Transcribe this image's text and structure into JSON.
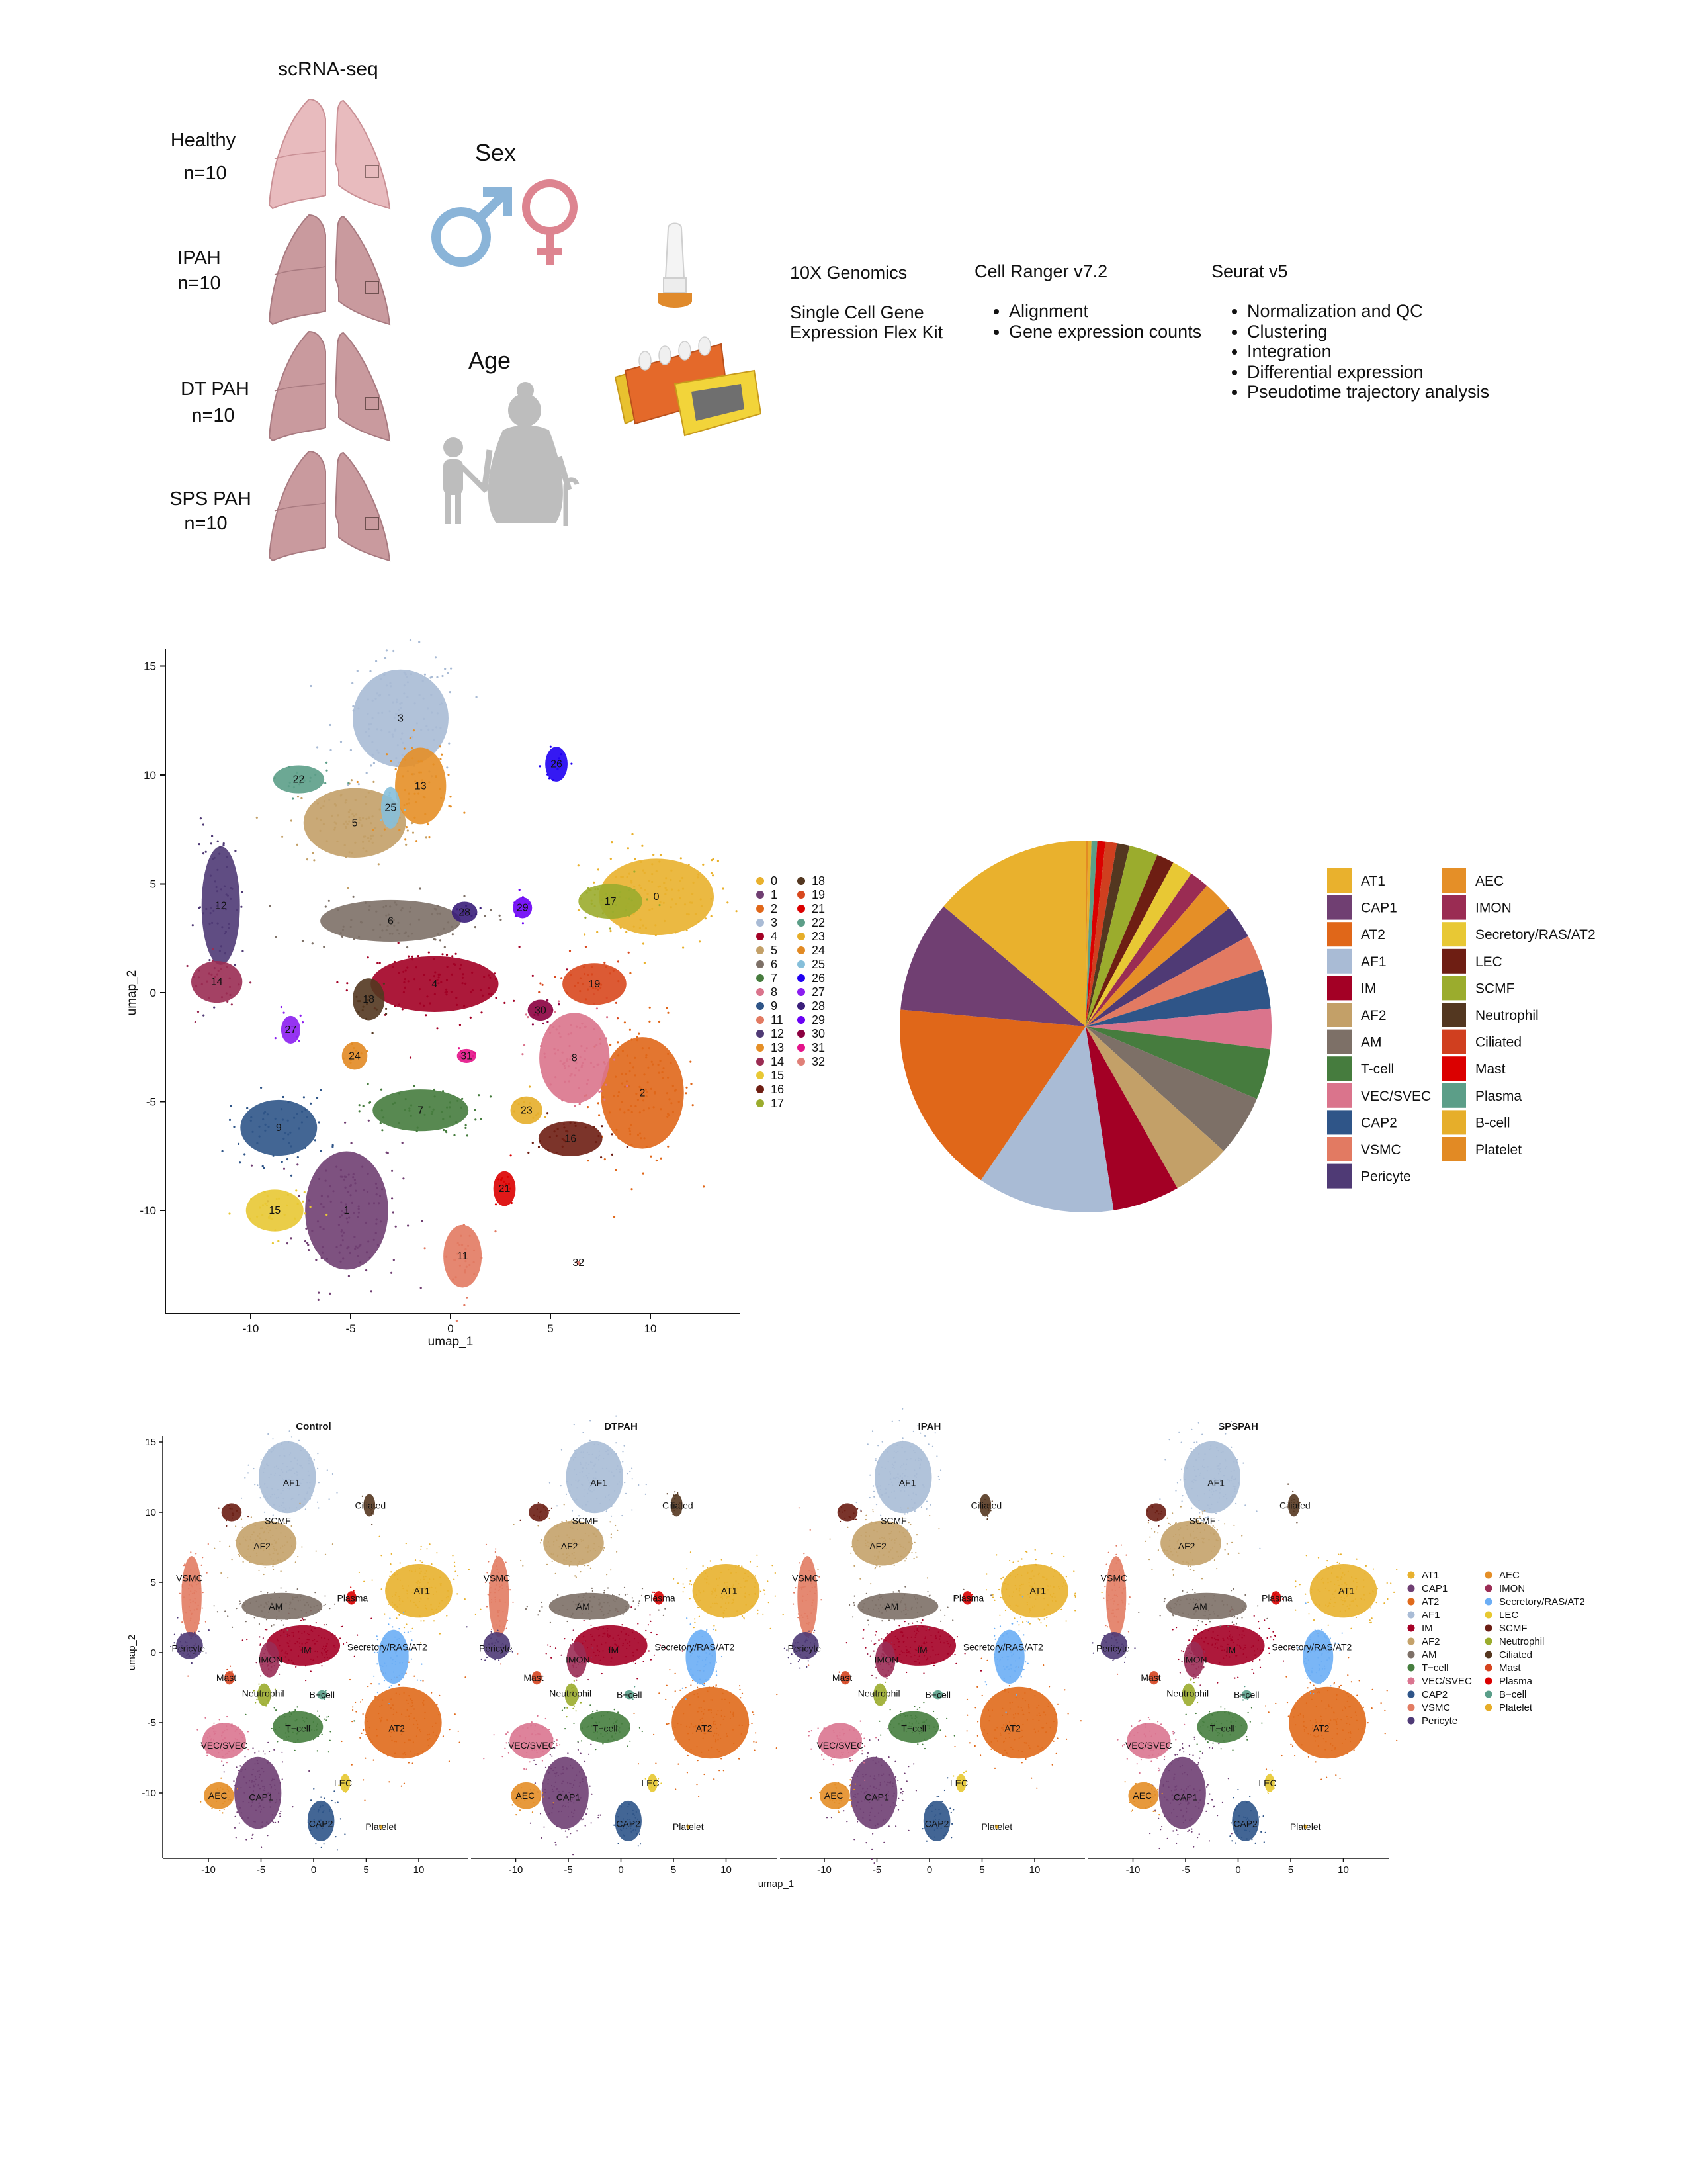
{
  "header": {
    "assay": "scRNA-seq"
  },
  "cohorts": [
    {
      "name": "Healthy",
      "n": "n=10"
    },
    {
      "name": "IPAH",
      "n": "n=10"
    },
    {
      "name": "DT PAH",
      "n": "n=10"
    },
    {
      "name": "SPS PAH",
      "n": "n=10"
    }
  ],
  "covariates": {
    "sex": "Sex",
    "age": "Age"
  },
  "colors": {
    "lung_healthy": "#E8BBBE",
    "lung_disease": "#C99A9E",
    "male": "#8AB4D8",
    "female": "#DD8490",
    "figure": "#BDBDBD"
  },
  "pipeline": {
    "platform": {
      "title": "10X Genomics",
      "lines": [
        "Single Cell Gene",
        "Expression Flex Kit"
      ]
    },
    "cellranger": {
      "title": "Cell Ranger v7.2",
      "bullets": [
        "Alignment",
        "Gene expression counts"
      ]
    },
    "seurat": {
      "title": "Seurat v5",
      "bullets": [
        "Normalization and QC",
        "Clustering",
        "Integration",
        "Differential expression",
        "Pseudotime trajectory analysis"
      ]
    }
  },
  "chart_data": [
    {
      "type": "scatter",
      "title": "",
      "xlabel": "umap_1",
      "ylabel": "umap_2",
      "xlim": [
        -14.3,
        14.5
      ],
      "ylim": [
        -14.7,
        15.8
      ],
      "xticks": [
        "-10",
        "-5",
        "0",
        "5",
        "10"
      ],
      "xtick_values": [
        -10,
        -5,
        0,
        5,
        10
      ],
      "yticks": [
        "-10",
        "-5",
        "0",
        "5",
        "10",
        "15"
      ],
      "ytick_values": [
        -10,
        -5,
        0,
        5,
        10,
        15
      ],
      "legend_position": "right",
      "clusters": [
        {
          "id": "0",
          "color": "#E9B12D",
          "center": [
            10.3,
            4.4
          ],
          "spread": [
            1.8,
            1.1
          ]
        },
        {
          "id": "1",
          "color": "#703F72",
          "center": [
            -5.2,
            -10.0
          ],
          "spread": [
            1.3,
            1.7
          ]
        },
        {
          "id": "2",
          "color": "#E06719",
          "center": [
            9.6,
            -4.6
          ],
          "spread": [
            1.3,
            1.6
          ]
        },
        {
          "id": "3",
          "color": "#A9BBD5",
          "center": [
            -2.5,
            12.6
          ],
          "spread": [
            1.5,
            1.4
          ]
        },
        {
          "id": "4",
          "color": "#A30025",
          "center": [
            -0.8,
            0.4
          ],
          "spread": [
            2.0,
            0.8
          ]
        },
        {
          "id": "5",
          "color": "#C3A068",
          "center": [
            -4.8,
            7.8
          ],
          "spread": [
            1.6,
            1.0
          ]
        },
        {
          "id": "6",
          "color": "#7D7067",
          "center": [
            -3.0,
            3.3
          ],
          "spread": [
            2.2,
            0.6
          ]
        },
        {
          "id": "7",
          "color": "#467C3E",
          "center": [
            -1.5,
            -5.4
          ],
          "spread": [
            1.5,
            0.6
          ]
        },
        {
          "id": "8",
          "color": "#DA748C",
          "center": [
            6.2,
            -3.0
          ],
          "spread": [
            1.1,
            1.3
          ]
        },
        {
          "id": "9",
          "color": "#2F5588",
          "center": [
            -8.6,
            -6.2
          ],
          "spread": [
            1.2,
            0.8
          ]
        },
        {
          "id": "11",
          "color": "#E27A62",
          "center": [
            0.6,
            -12.1
          ],
          "spread": [
            0.6,
            0.9
          ]
        },
        {
          "id": "12",
          "color": "#4F3A75",
          "center": [
            -11.5,
            4.0
          ],
          "spread": [
            0.6,
            1.7
          ]
        },
        {
          "id": "13",
          "color": "#E58F27",
          "center": [
            -1.5,
            9.5
          ],
          "spread": [
            0.8,
            1.1
          ]
        },
        {
          "id": "14",
          "color": "#9A2C53",
          "center": [
            -11.7,
            0.5
          ],
          "spread": [
            0.8,
            0.6
          ]
        },
        {
          "id": "15",
          "color": "#E8C834",
          "center": [
            -8.8,
            -10.0
          ],
          "spread": [
            0.9,
            0.6
          ]
        },
        {
          "id": "16",
          "color": "#6E1E13",
          "center": [
            6.0,
            -6.7
          ],
          "spread": [
            1.0,
            0.5
          ]
        },
        {
          "id": "17",
          "color": "#9BAC2D",
          "center": [
            8.0,
            4.2
          ],
          "spread": [
            1.0,
            0.5
          ]
        },
        {
          "id": "18",
          "color": "#533720",
          "center": [
            -4.1,
            -0.3
          ],
          "spread": [
            0.5,
            0.6
          ]
        },
        {
          "id": "19",
          "color": "#D8481E",
          "center": [
            7.2,
            0.4
          ],
          "spread": [
            1.0,
            0.6
          ]
        },
        {
          "id": "21",
          "color": "#DB0000",
          "center": [
            2.7,
            -9.0
          ],
          "spread": [
            0.35,
            0.5
          ]
        },
        {
          "id": "22",
          "color": "#5C9E88",
          "center": [
            -7.6,
            9.8
          ],
          "spread": [
            0.8,
            0.4
          ]
        },
        {
          "id": "23",
          "color": "#E6AE2A",
          "center": [
            3.8,
            -5.4
          ],
          "spread": [
            0.5,
            0.4
          ]
        },
        {
          "id": "24",
          "color": "#E28A24",
          "center": [
            -4.8,
            -2.9
          ],
          "spread": [
            0.4,
            0.4
          ]
        },
        {
          "id": "25",
          "color": "#86BFDA",
          "center": [
            -3.0,
            8.5
          ],
          "spread": [
            0.3,
            0.6
          ]
        },
        {
          "id": "26",
          "color": "#1F00F2",
          "center": [
            5.3,
            10.5
          ],
          "spread": [
            0.35,
            0.5
          ]
        },
        {
          "id": "27",
          "color": "#8B1EF0",
          "center": [
            -8.0,
            -1.7
          ],
          "spread": [
            0.3,
            0.4
          ]
        },
        {
          "id": "28",
          "color": "#3A1E7A",
          "center": [
            0.7,
            3.7
          ],
          "spread": [
            0.4,
            0.3
          ]
        },
        {
          "id": "29",
          "color": "#6A00F5",
          "center": [
            3.6,
            3.9
          ],
          "spread": [
            0.3,
            0.3
          ]
        },
        {
          "id": "30",
          "color": "#8C0040",
          "center": [
            4.5,
            -0.8
          ],
          "spread": [
            0.4,
            0.3
          ]
        },
        {
          "id": "31",
          "color": "#E4138A",
          "center": [
            0.8,
            -2.9
          ],
          "spread": [
            0.3,
            0.2
          ]
        },
        {
          "id": "32",
          "color": "#E08078",
          "center": [
            6.4,
            -12.4
          ],
          "spread": [
            0.05,
            0.05
          ]
        }
      ]
    },
    {
      "type": "pie",
      "title": "",
      "legend_position": "right",
      "unit": "percent of cells (estimated)",
      "slices": [
        {
          "name": "AT1",
          "value": 13.8,
          "color": "#E9B12D"
        },
        {
          "name": "CAP1",
          "value": 9.7,
          "color": "#703F72"
        },
        {
          "name": "AT2",
          "value": 16.9,
          "color": "#E06719"
        },
        {
          "name": "AF1",
          "value": 11.9,
          "color": "#A9BBD5"
        },
        {
          "name": "IM",
          "value": 5.8,
          "color": "#A30025"
        },
        {
          "name": "AF2",
          "value": 5.1,
          "color": "#C3A068"
        },
        {
          "name": "AM",
          "value": 5.3,
          "color": "#7D7067"
        },
        {
          "name": "T-cell",
          "value": 4.4,
          "color": "#467C3E"
        },
        {
          "name": "VEC/SVEC",
          "value": 3.5,
          "color": "#DA748C"
        },
        {
          "name": "CAP2",
          "value": 3.4,
          "color": "#2F5588"
        },
        {
          "name": "VSMC",
          "value": 3.1,
          "color": "#E27A62"
        },
        {
          "name": "Pericyte",
          "value": 2.9,
          "color": "#4F3A75"
        },
        {
          "name": "AEC",
          "value": 2.7,
          "color": "#E58F27"
        },
        {
          "name": "IMON",
          "value": 1.7,
          "color": "#9A2C53"
        },
        {
          "name": "Secretory/RAS/AT2",
          "value": 1.8,
          "color": "#E8C834"
        },
        {
          "name": "LEC",
          "value": 1.5,
          "color": "#6E1E13"
        },
        {
          "name": "SCMF",
          "value": 2.5,
          "color": "#9BAC2D"
        },
        {
          "name": "Neutrophil",
          "value": 1.1,
          "color": "#533720"
        },
        {
          "name": "Ciliated",
          "value": 1.0,
          "color": "#D03F1F"
        },
        {
          "name": "Mast",
          "value": 0.7,
          "color": "#DB0000"
        },
        {
          "name": "Plasma",
          "value": 0.5,
          "color": "#5C9E88"
        },
        {
          "name": "B-cell",
          "value": 0.3,
          "color": "#E6AE2A"
        },
        {
          "name": "Platelet",
          "value": 0.2,
          "color": "#E28A24"
        }
      ]
    },
    {
      "type": "scatter",
      "panels": [
        "Control",
        "DTPAH",
        "IPAH",
        "SPSPAH"
      ],
      "xlabel": "umap_1",
      "ylabel": "umap_2",
      "xlim": [
        -14.5,
        14.5
      ],
      "ylim": [
        -14.7,
        15.8
      ],
      "xticks": [
        "-10",
        "-5",
        "0",
        "5",
        "10"
      ],
      "xtick_values": [
        -10,
        -5,
        0,
        5,
        10
      ],
      "yticks": [
        "-10",
        "-5",
        "0",
        "5",
        "10",
        "15"
      ],
      "ytick_values": [
        -10,
        -5,
        0,
        5,
        10,
        15
      ],
      "legend_position": "right",
      "celltypes": [
        {
          "name": "AT1",
          "color": "#E8B12E",
          "center": [
            10.0,
            4.4
          ],
          "spread": [
            2.0,
            1.2
          ],
          "label_at": [
            10.3,
            4.4
          ]
        },
        {
          "name": "CAP1",
          "color": "#6F3F73",
          "center": [
            -5.3,
            -10.0
          ],
          "spread": [
            1.4,
            1.6
          ],
          "label_at": [
            -5.0,
            -10.3
          ]
        },
        {
          "name": "AT2",
          "color": "#E06A1B",
          "center": [
            8.5,
            -5.0
          ],
          "spread": [
            2.3,
            1.6
          ],
          "label_at": [
            7.9,
            -5.4
          ]
        },
        {
          "name": "AF1",
          "color": "#A9BCD6",
          "center": [
            -2.5,
            12.5
          ],
          "spread": [
            1.7,
            1.6
          ],
          "label_at": [
            -2.1,
            12.1
          ]
        },
        {
          "name": "IM",
          "color": "#A50026",
          "center": [
            -1.0,
            0.5
          ],
          "spread": [
            2.2,
            0.9
          ],
          "label_at": [
            -0.7,
            0.2
          ]
        },
        {
          "name": "AF2",
          "color": "#C4A26A",
          "center": [
            -4.5,
            7.8
          ],
          "spread": [
            1.8,
            1.0
          ],
          "label_at": [
            -4.9,
            7.6
          ]
        },
        {
          "name": "AM",
          "color": "#7D7067",
          "center": [
            -3.0,
            3.3
          ],
          "spread": [
            2.4,
            0.6
          ],
          "label_at": [
            -3.6,
            3.3
          ]
        },
        {
          "name": "T−cell",
          "color": "#467E3F",
          "center": [
            -1.5,
            -5.3
          ],
          "spread": [
            1.5,
            0.7
          ],
          "label_at": [
            -1.5,
            -5.4
          ]
        },
        {
          "name": "VEC/SVEC",
          "color": "#DA7590",
          "center": [
            -8.5,
            -6.3
          ],
          "spread": [
            1.3,
            0.8
          ],
          "label_at": [
            -8.5,
            -6.6
          ]
        },
        {
          "name": "CAP2",
          "color": "#2F5589",
          "center": [
            0.7,
            -12.0
          ],
          "spread": [
            0.8,
            0.9
          ],
          "label_at": [
            0.7,
            -12.2
          ]
        },
        {
          "name": "VSMC",
          "color": "#E27C63",
          "center": [
            -11.6,
            4.0
          ],
          "spread": [
            0.6,
            1.8
          ],
          "label_at": [
            -11.8,
            5.3
          ]
        },
        {
          "name": "Pericyte",
          "color": "#4E3A76",
          "center": [
            -11.8,
            0.5
          ],
          "spread": [
            0.8,
            0.6
          ],
          "label_at": [
            -11.9,
            0.3
          ]
        },
        {
          "name": "AEC",
          "color": "#E48E27",
          "center": [
            -9.0,
            -10.2
          ],
          "spread": [
            0.9,
            0.6
          ],
          "label_at": [
            -9.1,
            -10.2
          ]
        },
        {
          "name": "IMON",
          "color": "#9A2C55",
          "center": [
            -4.2,
            -0.5
          ],
          "spread": [
            0.6,
            0.8
          ],
          "label_at": [
            -4.1,
            -0.5
          ]
        },
        {
          "name": "Secretory/RAS/AT2",
          "color": "#6CAEF5",
          "center": [
            7.6,
            -0.3
          ],
          "spread": [
            0.9,
            1.2
          ],
          "label_at": [
            7.0,
            0.4
          ]
        },
        {
          "name": "LEC",
          "color": "#E7C830",
          "center": [
            3.0,
            -9.3
          ],
          "spread": [
            0.3,
            0.4
          ],
          "label_at": [
            2.8,
            -9.3
          ]
        },
        {
          "name": "SCMF",
          "color": "#6B1E14",
          "center": [
            -7.8,
            10.0
          ],
          "spread": [
            0.6,
            0.4
          ],
          "label_at": [
            -3.4,
            9.4
          ]
        },
        {
          "name": "Neutrophil",
          "color": "#9BAC2E",
          "center": [
            -4.7,
            -3.0
          ],
          "spread": [
            0.4,
            0.5
          ],
          "label_at": [
            -4.8,
            -2.9
          ]
        },
        {
          "name": "Ciliated",
          "color": "#553720",
          "center": [
            5.3,
            10.5
          ],
          "spread": [
            0.35,
            0.5
          ],
          "label_at": [
            5.4,
            10.5
          ]
        },
        {
          "name": "Mast",
          "color": "#D5441F",
          "center": [
            -8.0,
            -1.8
          ],
          "spread": [
            0.3,
            0.3
          ],
          "label_at": [
            -8.3,
            -1.8
          ]
        },
        {
          "name": "Plasma",
          "color": "#DA0000",
          "center": [
            3.6,
            3.9
          ],
          "spread": [
            0.3,
            0.3
          ],
          "label_at": [
            3.7,
            3.9
          ]
        },
        {
          "name": "B−cell",
          "color": "#5A9E89",
          "center": [
            0.8,
            -3.0
          ],
          "spread": [
            0.3,
            0.2
          ],
          "label_at": [
            0.8,
            -3.0
          ]
        },
        {
          "name": "Platelet",
          "color": "#E6AD29",
          "center": [
            6.4,
            -12.4
          ],
          "spread": [
            0.05,
            0.05
          ],
          "label_at": [
            6.4,
            -12.4
          ]
        }
      ]
    }
  ]
}
